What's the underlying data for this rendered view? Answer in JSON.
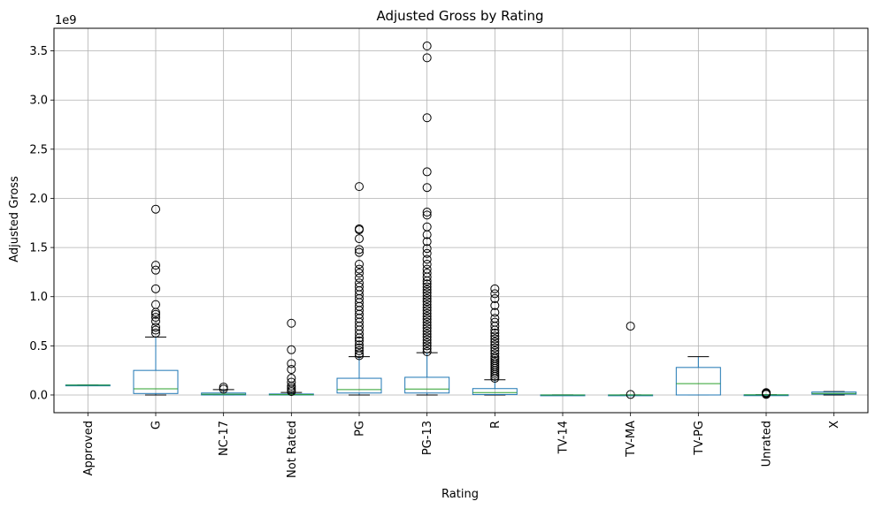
{
  "chart_data": {
    "type": "box",
    "title": "Adjusted Gross by Rating",
    "xlabel": "Rating",
    "ylabel": "Adjusted Gross",
    "offset_label": "1e9",
    "y_scale": 1000000000,
    "ylim": [
      -0.18,
      3.73
    ],
    "yticks": [
      0.0,
      0.5,
      1.0,
      1.5,
      2.0,
      2.5,
      3.0,
      3.5
    ],
    "ytick_labels": [
      "0.0",
      "0.5",
      "1.0",
      "1.5",
      "2.0",
      "2.5",
      "3.0",
      "3.5"
    ],
    "grid": true,
    "colors": {
      "box": "#1f77b4",
      "median": "#2ca02c",
      "whisker": "#000000",
      "grid": "#b0b0b0",
      "flier": "#000000"
    },
    "categories": [
      "Approved",
      "G",
      "NC-17",
      "Not Rated",
      "PG",
      "PG-13",
      "R",
      "TV-14",
      "TV-MA",
      "TV-PG",
      "Unrated",
      "X"
    ],
    "boxes": [
      {
        "q1": 0.097,
        "median": 0.1,
        "q3": 0.102,
        "whislo": 0.097,
        "whishi": 0.102,
        "fliers": []
      },
      {
        "q1": 0.015,
        "median": 0.063,
        "q3": 0.25,
        "whislo": 0.0,
        "whishi": 0.59,
        "fliers": [
          0.63,
          0.66,
          0.69,
          0.75,
          0.79,
          0.82,
          0.84,
          0.92,
          1.08,
          1.27,
          1.32,
          1.89
        ]
      },
      {
        "q1": 0.0,
        "median": 0.008,
        "q3": 0.02,
        "whislo": 0.0,
        "whishi": 0.055,
        "fliers": [
          0.06,
          0.08
        ]
      },
      {
        "q1": 0.0,
        "median": 0.003,
        "q3": 0.01,
        "whislo": 0.0,
        "whishi": 0.026,
        "fliers": [
          0.035,
          0.05,
          0.07,
          0.09,
          0.13,
          0.17,
          0.26,
          0.32,
          0.46,
          0.73
        ]
      },
      {
        "q1": 0.02,
        "median": 0.055,
        "q3": 0.17,
        "whislo": 0.0,
        "whishi": 0.39,
        "fliers": [
          0.4,
          0.42,
          0.45,
          0.48,
          0.51,
          0.55,
          0.58,
          0.62,
          0.66,
          0.7,
          0.74,
          0.78,
          0.82,
          0.86,
          0.9,
          0.94,
          0.98,
          1.02,
          1.06,
          1.1,
          1.14,
          1.19,
          1.24,
          1.28,
          1.33,
          1.45,
          1.48,
          1.59,
          1.68,
          1.69,
          2.12
        ]
      },
      {
        "q1": 0.02,
        "median": 0.06,
        "q3": 0.18,
        "whislo": 0.0,
        "whishi": 0.43,
        "fliers": [
          0.44,
          0.47,
          0.5,
          0.53,
          0.56,
          0.59,
          0.62,
          0.65,
          0.68,
          0.71,
          0.74,
          0.77,
          0.8,
          0.83,
          0.86,
          0.89,
          0.92,
          0.95,
          0.98,
          1.01,
          1.04,
          1.07,
          1.1,
          1.13,
          1.16,
          1.2,
          1.24,
          1.28,
          1.33,
          1.38,
          1.44,
          1.49,
          1.56,
          1.63,
          1.71,
          1.83,
          1.86,
          2.11,
          2.27,
          2.82,
          3.43,
          3.55
        ]
      },
      {
        "q1": 0.005,
        "median": 0.025,
        "q3": 0.065,
        "whislo": 0.0,
        "whishi": 0.155,
        "fliers": [
          0.17,
          0.19,
          0.21,
          0.23,
          0.25,
          0.27,
          0.29,
          0.31,
          0.33,
          0.35,
          0.37,
          0.39,
          0.42,
          0.45,
          0.48,
          0.51,
          0.54,
          0.57,
          0.6,
          0.63,
          0.66,
          0.7,
          0.74,
          0.78,
          0.84,
          0.91,
          0.98,
          1.03,
          1.08
        ]
      },
      {
        "q1": 0.0,
        "median": 0.0,
        "q3": 0.001,
        "whislo": 0.0,
        "whishi": 0.001,
        "fliers": []
      },
      {
        "q1": 0.0,
        "median": 0.0,
        "q3": 0.001,
        "whislo": 0.0,
        "whishi": 0.001,
        "fliers": [
          0.005,
          0.7
        ]
      },
      {
        "q1": 0.0,
        "median": 0.115,
        "q3": 0.28,
        "whislo": 0.0,
        "whishi": 0.39,
        "fliers": []
      },
      {
        "q1": 0.0,
        "median": 0.001,
        "q3": 0.002,
        "whislo": 0.0,
        "whishi": 0.003,
        "fliers": [
          0.006,
          0.012,
          0.018,
          0.024
        ]
      },
      {
        "q1": 0.008,
        "median": 0.015,
        "q3": 0.03,
        "whislo": 0.0,
        "whishi": 0.035,
        "fliers": []
      }
    ]
  }
}
